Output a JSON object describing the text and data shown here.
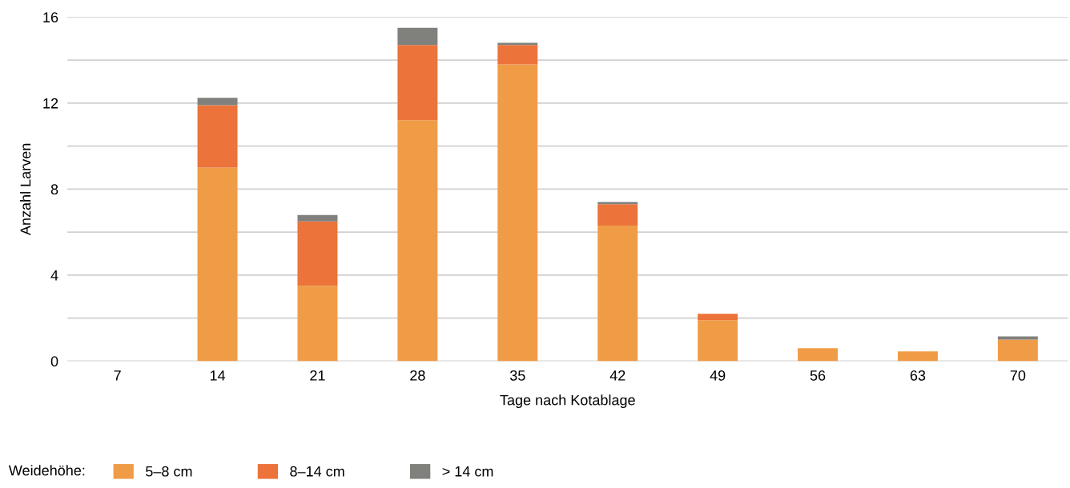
{
  "chart_data": {
    "type": "bar",
    "stacked": true,
    "xlabel": "Tage nach Kotablage",
    "ylabel": "Anzahl Larven",
    "categories": [
      "7",
      "14",
      "21",
      "28",
      "35",
      "42",
      "49",
      "56",
      "63",
      "70"
    ],
    "series": [
      {
        "name": "5–8 cm",
        "color": "#f09c46",
        "values": [
          0,
          9.0,
          3.5,
          11.2,
          13.8,
          6.3,
          1.9,
          0.6,
          0.45,
          1.0
        ]
      },
      {
        "name": "8–14 cm",
        "color": "#ec733a",
        "values": [
          0,
          2.9,
          3.0,
          3.5,
          0.9,
          1.0,
          0.3,
          0,
          0,
          0
        ]
      },
      {
        "name": "> 14 cm",
        "color": "#80807c",
        "values": [
          0,
          0.35,
          0.3,
          0.8,
          0.1,
          0.1,
          0,
          0,
          0,
          0.15
        ]
      }
    ],
    "legend_title": "Weidehöhe:",
    "legend": "bottom",
    "grid": "y",
    "ylim": [
      0,
      16
    ],
    "yticks": [
      0,
      {
        "value": 2,
        "label": null
      },
      4,
      {
        "value": 6,
        "label": null
      },
      8,
      {
        "value": 10,
        "label": null
      },
      12,
      {
        "value": 14,
        "label": null
      },
      16
    ]
  }
}
